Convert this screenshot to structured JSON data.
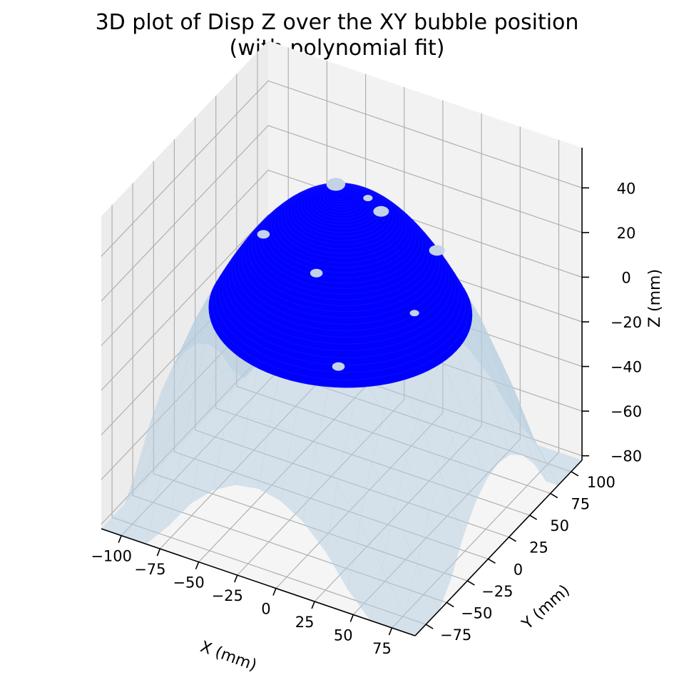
{
  "chart_data": {
    "type": "surface3d",
    "title_line1": "3D plot of Disp Z over the XY bubble position",
    "title_line2": "(with polynomial fit)",
    "xlabel": "X (mm)",
    "ylabel": "Y (mm)",
    "zlabel": "Z (mm)",
    "x_ticks": [
      -100,
      -75,
      -50,
      -25,
      0,
      25,
      50,
      75
    ],
    "y_ticks": [
      -75,
      -50,
      -25,
      0,
      25,
      50,
      75,
      100
    ],
    "z_ticks": [
      -80,
      -60,
      -40,
      -20,
      0,
      20,
      40
    ],
    "x_tick_labels": [
      "−100",
      "−75",
      "−50",
      "−25",
      "0",
      "25",
      "50",
      "75"
    ],
    "y_tick_labels": [
      "−75",
      "−50",
      "−25",
      "0",
      "25",
      "50",
      "75",
      "100"
    ],
    "z_tick_labels": [
      "−80",
      "−60",
      "−40",
      "−20",
      "0",
      "20",
      "40"
    ],
    "xlim": [
      -113,
      90
    ],
    "ylim": [
      -88,
      113
    ],
    "zlim": [
      -82,
      58
    ],
    "series": [
      {
        "kind": "scatter-dome",
        "color": "#0000ff",
        "center": [
          -12,
          12
        ],
        "radius": 75,
        "peak_z": 52
      },
      {
        "kind": "polynomial-fit-surface",
        "color": "#aec7e8",
        "opacity": 0.55,
        "model": "z = 52 - 0.0092*((x+12)^2 + (y-12)^2)"
      }
    ],
    "grid": true
  },
  "colors": {
    "data": "#0000ff",
    "fit": "#b6cddf",
    "pane_back": "#f2f2f2",
    "pane_side": "#ececec",
    "pane_floor": "#f5f5f5",
    "grid": "#b0b0b0"
  }
}
